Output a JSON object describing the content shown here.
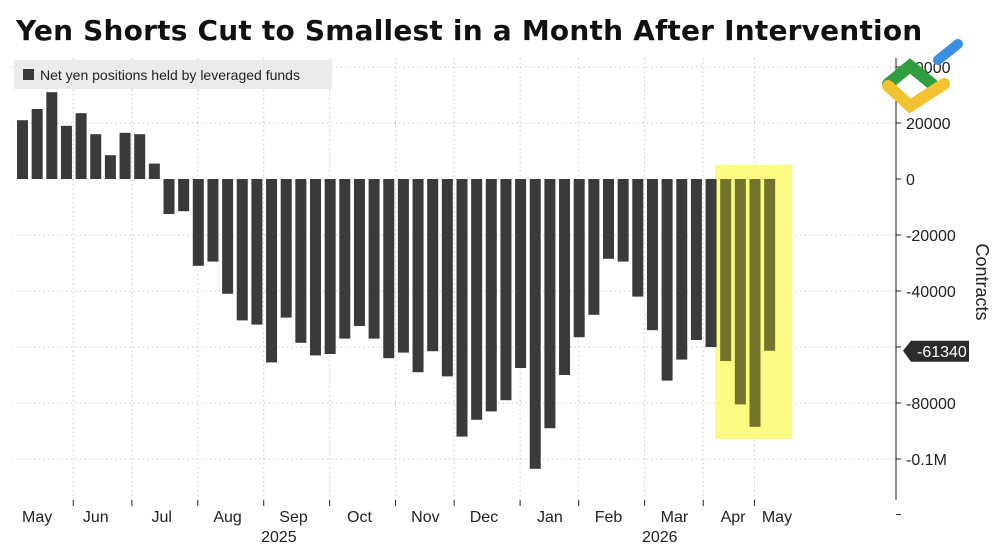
{
  "chart_data": {
    "type": "bar",
    "title": "Yen Shorts Cut to Smallest in a Month After Intervention",
    "series": [
      {
        "name": "Net yen positions held by leveraged funds",
        "values": [
          21000,
          25000,
          31000,
          19000,
          23500,
          16000,
          8500,
          16500,
          16000,
          5500,
          -12500,
          -11500,
          -31000,
          -29500,
          -41000,
          -50500,
          -52000,
          -65500,
          -49500,
          -58500,
          -63000,
          -62500,
          -57000,
          -52500,
          -57000,
          -64000,
          -62000,
          -69000,
          -61500,
          -70500,
          -92000,
          -86000,
          -83000,
          -79000,
          -67500,
          -103500,
          -89000,
          -70000,
          -56500,
          -48500,
          -28500,
          -29500,
          -42000,
          -54000,
          -72000,
          -64500,
          -57500,
          -60000,
          -65000,
          -80500,
          -88500,
          -61340
        ],
        "color": "#3a3a3a"
      }
    ],
    "x_month_labels": [
      {
        "label": "May",
        "bar": 1
      },
      {
        "label": "Jun",
        "bar": 5
      },
      {
        "label": "Jul",
        "bar": 9.5
      },
      {
        "label": "Aug",
        "bar": 14
      },
      {
        "label": "Sep",
        "bar": 18.5
      },
      {
        "label": "Oct",
        "bar": 23
      },
      {
        "label": "Nov",
        "bar": 27.5
      },
      {
        "label": "Dec",
        "bar": 31.5
      },
      {
        "label": "Jan",
        "bar": 36
      },
      {
        "label": "Feb",
        "bar": 40
      },
      {
        "label": "Mar",
        "bar": 44.5
      },
      {
        "label": "Apr",
        "bar": 48.5
      },
      {
        "label": "May",
        "bar": 51.5
      }
    ],
    "year_labels": [
      {
        "label": "2025",
        "bar": 17.5
      },
      {
        "label": "2026",
        "bar": 43.5
      }
    ],
    "y_ticks": [
      {
        "value": 40000,
        "label": "40000"
      },
      {
        "value": 20000,
        "label": "20000"
      },
      {
        "value": 0,
        "label": "0"
      },
      {
        "value": -20000,
        "label": "-20000"
      },
      {
        "value": -40000,
        "label": "-40000"
      },
      {
        "value": -80000,
        "label": "-80000"
      },
      {
        "value": -100000,
        "label": "-0.1M"
      }
    ],
    "ylim": [
      -117000,
      44000
    ],
    "ylabel": "Contracts",
    "xlabel": "",
    "last_value_label": "-61340",
    "highlight": {
      "from_bar": 48,
      "to_bar": 51,
      "color": "#fafa6e"
    },
    "grid": true,
    "legend_position": "top-left"
  },
  "logo": {
    "name": "litefinance-logo",
    "colors": [
      "#2e9e3e",
      "#f2c230",
      "#3a8fe0"
    ]
  }
}
